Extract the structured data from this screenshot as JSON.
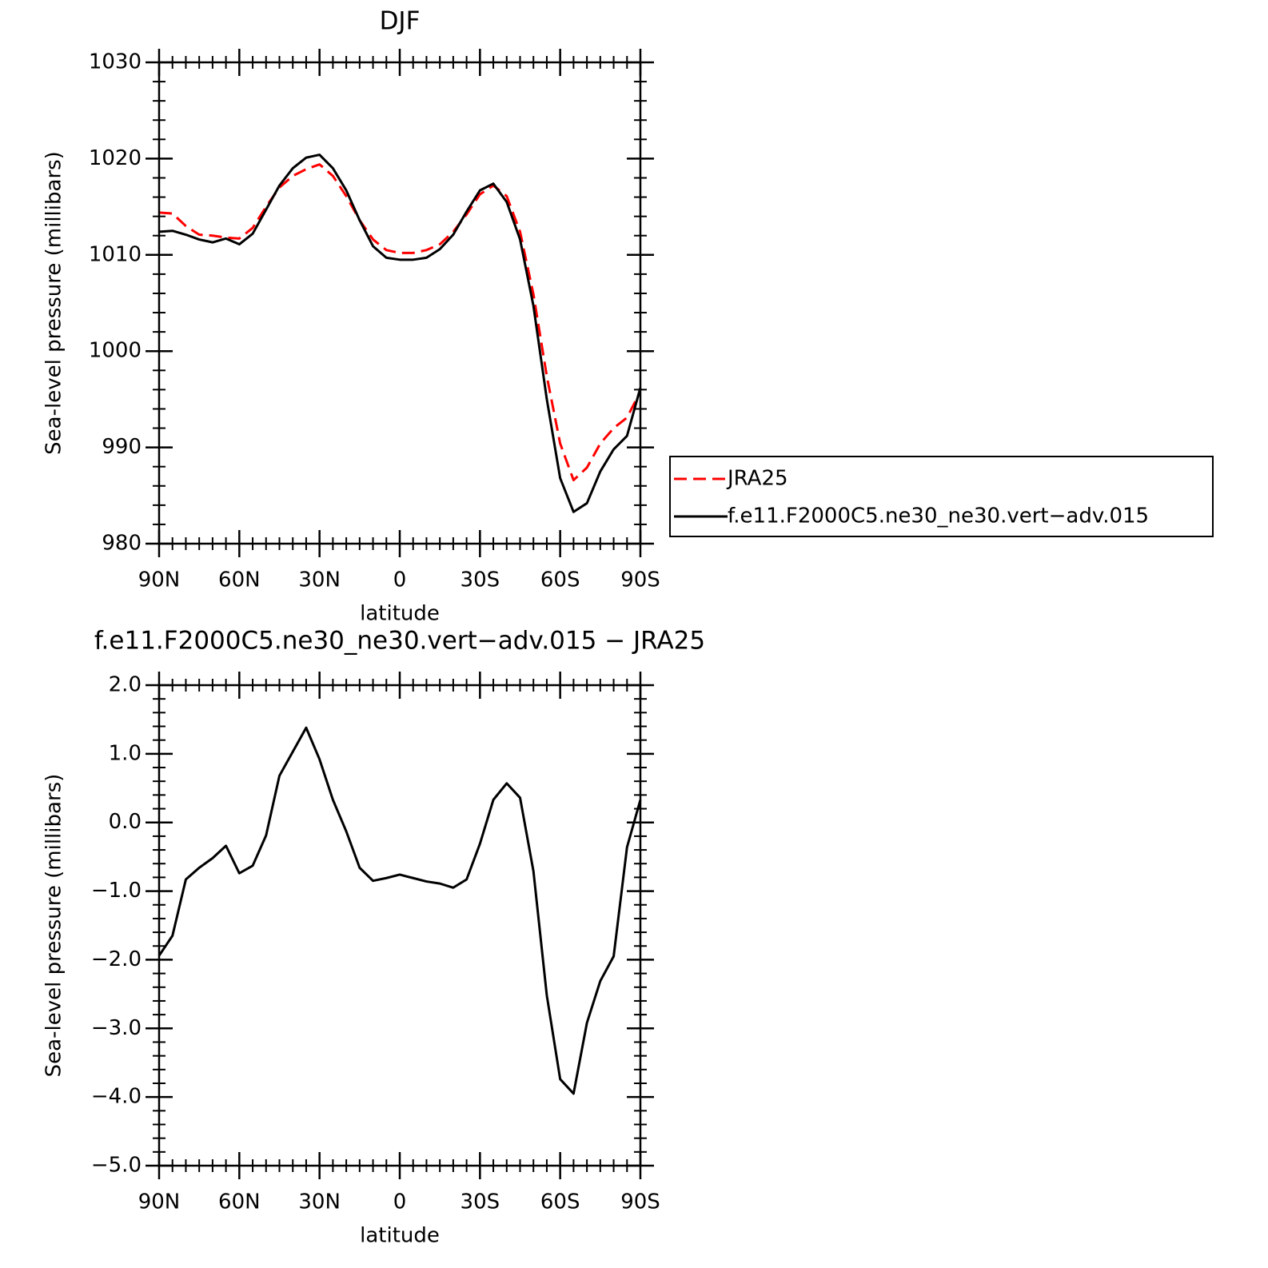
{
  "chart_data": [
    {
      "type": "line",
      "title": "DJF",
      "xlabel": "latitude",
      "ylabel": "Sea-level pressure (millibars)",
      "legend": "right",
      "x": [
        90,
        85,
        80,
        75,
        70,
        65,
        60,
        55,
        50,
        45,
        40,
        35,
        30,
        25,
        20,
        15,
        10,
        5,
        0,
        -5,
        -10,
        -15,
        -20,
        -25,
        -30,
        -35,
        -40,
        -45,
        -50,
        -55,
        -60,
        -65,
        -70,
        -75,
        -80,
        -85,
        -90
      ],
      "series": [
        {
          "name": "JRA25",
          "color": "#ff0000",
          "dashed": true,
          "values": [
            1014.4,
            1014.3,
            1013.0,
            1012.1,
            1012.0,
            1011.8,
            1011.7,
            1012.8,
            1015.0,
            1017.0,
            1018.2,
            1018.9,
            1019.4,
            1018.2,
            1016.1,
            1013.6,
            1011.6,
            1010.5,
            1010.2,
            1010.2,
            1010.5,
            1011.1,
            1012.4,
            1014.2,
            1016.3,
            1017.2,
            1016.1,
            1012.4,
            1005.9,
            997.4,
            990.4,
            986.6,
            987.9,
            990.4,
            992.0,
            993.1,
            995.8
          ]
        },
        {
          "name": "f.e11.F2000C5.ne30_ne30.vert−adv.015",
          "color": "#000000",
          "dashed": false,
          "values": [
            1012.4,
            1012.5,
            1012.1,
            1011.6,
            1011.3,
            1011.7,
            1011.1,
            1012.2,
            1014.7,
            1017.2,
            1019.0,
            1020.1,
            1020.4,
            1019.0,
            1016.7,
            1013.6,
            1010.9,
            1009.7,
            1009.5,
            1009.5,
            1009.7,
            1010.6,
            1012.1,
            1014.5,
            1016.7,
            1017.4,
            1015.5,
            1011.6,
            1004.7,
            995.0,
            986.8,
            983.3,
            984.2,
            987.5,
            989.8,
            991.2,
            996.2
          ]
        }
      ],
      "xlim": [
        90,
        -90
      ],
      "xticks": [
        {
          "value": 90,
          "label": "90N"
        },
        {
          "value": 60,
          "label": "60N"
        },
        {
          "value": 30,
          "label": "30N"
        },
        0,
        {
          "value": -30,
          "label": "30S"
        },
        {
          "value": -60,
          "label": "60S"
        },
        {
          "value": -90,
          "label": "90S"
        }
      ],
      "ylim": [
        980,
        1030
      ],
      "yticks": [
        980,
        990,
        1000,
        1010,
        1020,
        1030
      ]
    },
    {
      "type": "line",
      "title": "f.e11.F2000C5.ne30_ne30.vert−adv.015 − JRA25",
      "xlabel": "latitude",
      "ylabel": "Sea-level pressure (millibars)",
      "x": [
        90,
        85,
        80,
        75,
        70,
        65,
        60,
        55,
        50,
        45,
        40,
        35,
        30,
        25,
        20,
        15,
        10,
        5,
        0,
        -5,
        -10,
        -15,
        -20,
        -25,
        -30,
        -35,
        -40,
        -45,
        -50,
        -55,
        -60,
        -65,
        -70,
        -75,
        -80,
        -85,
        -90
      ],
      "series": [
        {
          "color": "#000000",
          "dashed": false,
          "values": [
            -1.94,
            -1.65,
            -0.83,
            -0.66,
            -0.52,
            -0.34,
            -0.74,
            -0.63,
            -0.19,
            0.68,
            1.03,
            1.38,
            0.92,
            0.33,
            -0.13,
            -0.66,
            -0.85,
            -0.81,
            -0.76,
            -0.81,
            -0.86,
            -0.89,
            -0.95,
            -0.83,
            -0.31,
            0.33,
            0.57,
            0.36,
            -0.71,
            -2.52,
            -3.74,
            -3.95,
            -2.92,
            -2.31,
            -1.95,
            -0.36,
            0.33
          ]
        }
      ],
      "xlim": [
        90,
        -90
      ],
      "xticks": [
        {
          "value": 90,
          "label": "90N"
        },
        {
          "value": 60,
          "label": "60N"
        },
        {
          "value": 30,
          "label": "30N"
        },
        0,
        {
          "value": -30,
          "label": "30S"
        },
        {
          "value": -60,
          "label": "60S"
        },
        {
          "value": -90,
          "label": "90S"
        }
      ],
      "ylim": [
        -5,
        2
      ],
      "yticks": [
        {
          "value": -5,
          "label": "−5.0"
        },
        {
          "value": -4,
          "label": "−4.0"
        },
        {
          "value": -3,
          "label": "−3.0"
        },
        {
          "value": -2,
          "label": "−2.0"
        },
        {
          "value": -1,
          "label": "−1.0"
        },
        {
          "value": 0,
          "label": "0.0"
        },
        {
          "value": 1,
          "label": "1.0"
        },
        {
          "value": 2,
          "label": "2.0"
        }
      ]
    }
  ]
}
